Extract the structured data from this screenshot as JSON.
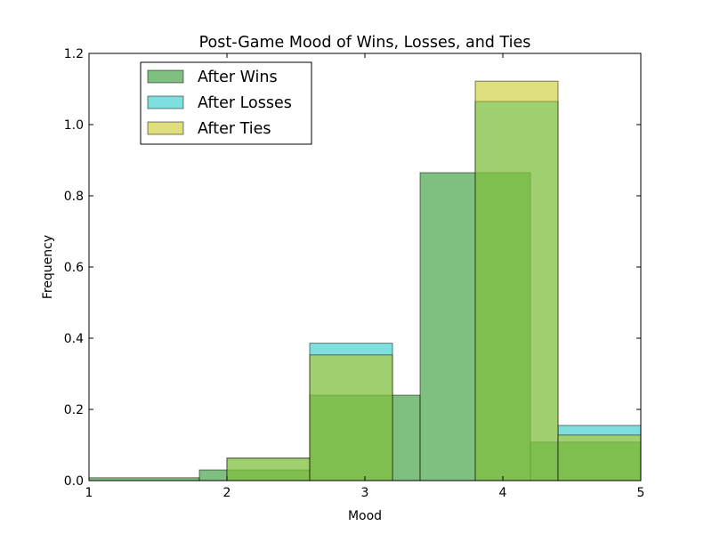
{
  "chart_data": {
    "type": "bar",
    "title": "Post-Game Mood of Wins, Losses, and Ties",
    "xlabel": "Mood",
    "ylabel": "Frequency",
    "xlim": [
      1,
      5
    ],
    "ylim": [
      0,
      1.2
    ],
    "x_ticks": [
      "1",
      "2",
      "3",
      "4",
      "5"
    ],
    "y_ticks": [
      "0.0",
      "0.2",
      "0.4",
      "0.6",
      "0.8",
      "1.0",
      "1.2"
    ],
    "legend_position": "top-left",
    "series": [
      {
        "name": "After Wins",
        "color": "#008000",
        "bins": [
          {
            "x0": 1.0,
            "x1": 1.8,
            "value": 0.008
          },
          {
            "x0": 1.8,
            "x1": 2.6,
            "value": 0.03
          },
          {
            "x0": 2.6,
            "x1": 3.4,
            "value": 0.24
          },
          {
            "x0": 3.4,
            "x1": 4.2,
            "value": 0.865
          },
          {
            "x0": 4.2,
            "x1": 5.0,
            "value": 0.108
          }
        ]
      },
      {
        "name": "After Losses",
        "color": "#00bfbf",
        "bins": [
          {
            "x0": 2.0,
            "x1": 2.6,
            "value": 0.063
          },
          {
            "x0": 2.6,
            "x1": 3.2,
            "value": 0.386
          },
          {
            "x0": 3.2,
            "x1": 3.8,
            "value": 0.0
          },
          {
            "x0": 3.8,
            "x1": 4.4,
            "value": 1.065
          },
          {
            "x0": 4.4,
            "x1": 5.0,
            "value": 0.155
          }
        ]
      },
      {
        "name": "After Ties",
        "color": "#bfbf00",
        "bins": [
          {
            "x0": 2.0,
            "x1": 2.6,
            "value": 0.063
          },
          {
            "x0": 2.6,
            "x1": 3.2,
            "value": 0.353
          },
          {
            "x0": 3.2,
            "x1": 3.8,
            "value": 0.0
          },
          {
            "x0": 3.8,
            "x1": 4.4,
            "value": 1.122
          },
          {
            "x0": 4.4,
            "x1": 5.0,
            "value": 0.128
          }
        ]
      }
    ]
  }
}
